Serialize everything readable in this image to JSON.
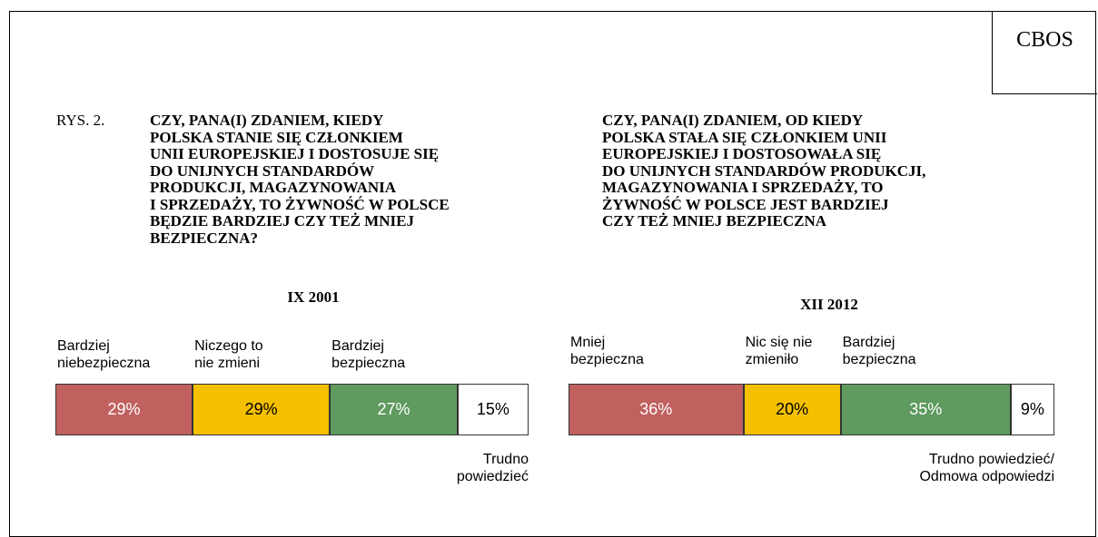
{
  "brand": "CBOS",
  "figure_label": "RYS. 2.",
  "chart_data": [
    {
      "type": "bar",
      "orientation": "horizontal",
      "stacked": true,
      "title": "CZY, PANA(I) ZDANIEM, KIEDY\nPOLSKA STANIE SIĘ CZŁONKIEM\nUNII EUROPEJSKIEJ I DOSTOSUJE SIĘ\nDO UNIJNYCH STANDARDÓW\nPRODUKCJI, MAGAZYNOWANIA\nI SPRZEDAŻY, TO ŻYWNOŚĆ W POLSCE\nBĘDZIE BARDZIEJ CZY TEŻ MNIEJ\nBEZPIECZNA?",
      "subtitle": "IX 2001",
      "categories": [
        "Bardziej\nniebezpieczna",
        "Niczego to\nnie zmieni",
        "Bardziej\nbezpieczna",
        "Trudno\npowiedzieć"
      ],
      "values": [
        29,
        29,
        27,
        15
      ],
      "value_labels": [
        "29%",
        "29%",
        "27%",
        "15%"
      ],
      "colors": [
        "#c0605f",
        "#f5c000",
        "#5f9a5f",
        "#ffffff"
      ],
      "xlim": [
        0,
        100
      ]
    },
    {
      "type": "bar",
      "orientation": "horizontal",
      "stacked": true,
      "title": "CZY, PANA(I) ZDANIEM, OD KIEDY\nPOLSKA STAŁA SIĘ CZŁONKIEM UNII\nEUROPEJSKIEJ I DOSTOSOWAŁA SIĘ\nDO UNIJNYCH STANDARDÓW PRODUKCJI,\nMAGAZYNOWANIA I SPRZEDAŻY, TO\nŻYWNOŚĆ W POLSCE JEST BARDZIEJ\nCZY TEŻ MNIEJ BEZPIECZNA",
      "subtitle": "XII 2012",
      "categories": [
        "Mniej\nbezpieczna",
        "Nic się nie\nzmieniło",
        "Bardziej\nbezpieczna",
        "Trudno powiedzieć/\nOdmowa odpowiedzi"
      ],
      "values": [
        36,
        20,
        35,
        9
      ],
      "value_labels": [
        "36%",
        "20%",
        "35%",
        "9%"
      ],
      "colors": [
        "#c0605f",
        "#f5c000",
        "#5f9a5f",
        "#ffffff"
      ],
      "xlim": [
        0,
        100
      ]
    }
  ]
}
